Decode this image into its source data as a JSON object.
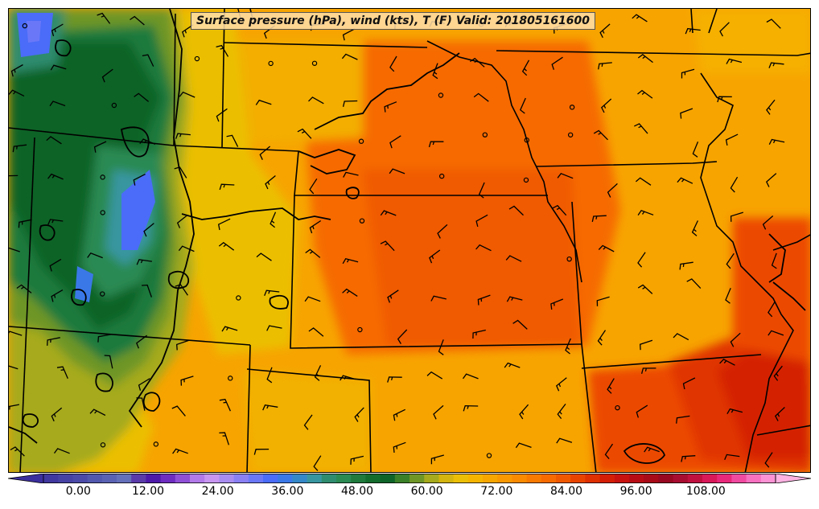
{
  "title": "Surface pressure (hPa), wind (kts), T (F) Valid: 201805161600",
  "colorbar": {
    "min": -6,
    "max": 120,
    "step": 3,
    "tick_labels": [
      "0.00",
      "12.00",
      "24.00",
      "36.00",
      "48.00",
      "60.00",
      "72.00",
      "84.00",
      "96.00",
      "108.00"
    ],
    "colors": [
      "#3b2f9e",
      "#40379f",
      "#4642a4",
      "#4b4aa8",
      "#5158ae",
      "#5a62b3",
      "#6470b9",
      "#5a3aa8",
      "#4c18a8",
      "#6e2cc0",
      "#8f4fd6",
      "#b27ae8",
      "#c896f0",
      "#a88cf0",
      "#8a80f4",
      "#6a78f8",
      "#4a6cf8",
      "#3a78e8",
      "#3488c8",
      "#3896a0",
      "#2f8c6e",
      "#2a8a52",
      "#1f7a3c",
      "#146c2c",
      "#0e6428",
      "#3a8028",
      "#6e9626",
      "#a6aa1c",
      "#d4b40e",
      "#ebbf05",
      "#f5b400",
      "#f7a600",
      "#f99800",
      "#fa8a00",
      "#f97a00",
      "#f66a00",
      "#f05800",
      "#e84400",
      "#de3000",
      "#d41e06",
      "#c8120e",
      "#b80c14",
      "#a80a18",
      "#980820",
      "#a80c30",
      "#c01040",
      "#d81858",
      "#e8287a",
      "#f04aa0",
      "#f870c0",
      "#fc92d4",
      "#fdb2e2"
    ]
  },
  "colors": {
    "border": "#000000",
    "isobar": "#000000",
    "frame": "#000000"
  },
  "map": {
    "fields": [
      "surface-pressure-isobars",
      "wind-barbs",
      "temperature-fill"
    ],
    "features": [
      "state-borders",
      "mississippi-river"
    ]
  }
}
